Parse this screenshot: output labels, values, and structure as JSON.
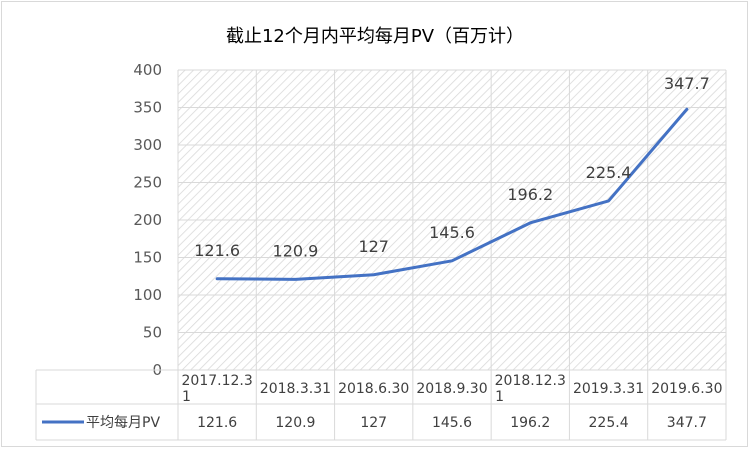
{
  "chart_data": {
    "type": "line",
    "title": "截止12个月内平均每月PV（百万计）",
    "categories": [
      "2017.12.31",
      "2018.3.31",
      "2018.6.30",
      "2018.9.30",
      "2018.12.31",
      "2019.3.31",
      "2019.6.30"
    ],
    "category_display": [
      [
        "2017.12.3",
        "1"
      ],
      [
        "2018.3.31"
      ],
      [
        "2018.6.30"
      ],
      [
        "2018.9.30"
      ],
      [
        "2018.12.3",
        "1"
      ],
      [
        "2019.3.31"
      ],
      [
        "2019.6.30"
      ]
    ],
    "series": [
      {
        "name": "平均每月PV",
        "values": [
          121.6,
          120.9,
          127,
          145.6,
          196.2,
          225.4,
          347.7
        ],
        "color": "#4472c4"
      }
    ],
    "yticks": [
      0,
      50,
      100,
      150,
      200,
      250,
      300,
      350,
      400
    ],
    "ylim": [
      0,
      400
    ],
    "grid": true,
    "data_labels": true,
    "data_table": true,
    "plot_fill": "diagonal-hatch"
  }
}
